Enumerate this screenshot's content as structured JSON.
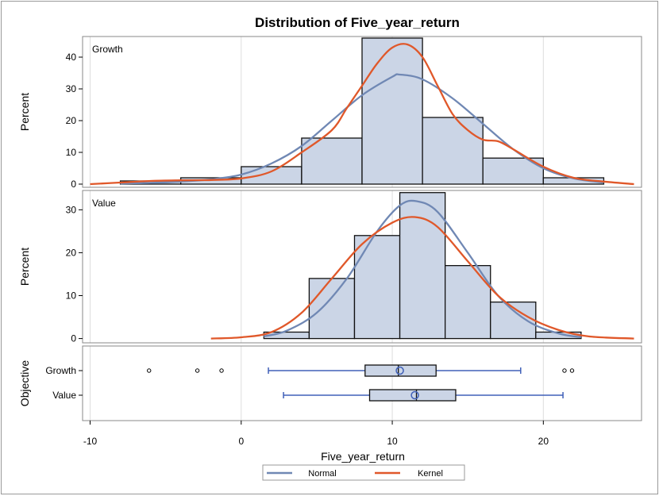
{
  "chart_data": {
    "type": "histogram-panel",
    "title": "Distribution of Five_year_return",
    "xlabel": "Five_year_return",
    "xlim": [
      -10.5,
      26.5
    ],
    "xticks": [
      -10,
      0,
      10,
      20
    ],
    "colors": {
      "bar_fill": "#cbd5e6",
      "bar_stroke": "#111111",
      "normal": "#7088b4",
      "kernel": "#e0582a",
      "box": "#4060b8",
      "grid": "#dddddd",
      "frame": "#888888"
    },
    "panels": [
      {
        "label": "Growth",
        "ylabel": "Percent",
        "ylim": [
          -1,
          46.5
        ],
        "yticks": [
          0,
          10,
          20,
          30,
          40
        ],
        "bins": [
          {
            "x0": -8,
            "x1": -4,
            "value": 1
          },
          {
            "x0": -4,
            "x1": 0,
            "value": 2
          },
          {
            "x0": 0,
            "x1": 4,
            "value": 5.5
          },
          {
            "x0": 4,
            "x1": 8,
            "value": 14.5
          },
          {
            "x0": 8,
            "x1": 12,
            "value": 46
          },
          {
            "x0": 12,
            "x1": 16,
            "value": 21
          },
          {
            "x0": 16,
            "x1": 20,
            "value": 8.2
          },
          {
            "x0": 20,
            "x1": 24,
            "value": 2
          }
        ],
        "normal": {
          "x": [
            -8,
            -6,
            -4,
            -2,
            0,
            2,
            4,
            6,
            8,
            10,
            10.5,
            12,
            14,
            16,
            18,
            20,
            22,
            24
          ],
          "y": [
            0.2,
            0.4,
            0.8,
            1.5,
            3,
            6.5,
            12,
            20,
            28,
            33.8,
            34.5,
            33,
            27,
            19,
            11,
            5,
            1.8,
            0.5
          ]
        },
        "kernel": {
          "x": [
            -10,
            -8,
            -6,
            -4,
            -2,
            0,
            2,
            4,
            6,
            7,
            8,
            9,
            10,
            11,
            12,
            13,
            14,
            15,
            16,
            17,
            18,
            20,
            22,
            24,
            26
          ],
          "y": [
            0,
            0.5,
            1,
            1.2,
            1.3,
            1.8,
            4,
            10,
            17,
            24,
            31,
            38,
            43,
            44,
            40,
            31,
            22,
            17,
            14,
            13.5,
            11,
            5.5,
            2,
            0.8,
            0
          ]
        }
      },
      {
        "label": "Value",
        "ylabel": "Percent",
        "ylim": [
          -1,
          34.5
        ],
        "yticks": [
          0,
          10,
          20,
          30
        ],
        "bins": [
          {
            "x0": 1.5,
            "x1": 4.5,
            "value": 1.5
          },
          {
            "x0": 4.5,
            "x1": 7.5,
            "value": 14
          },
          {
            "x0": 7.5,
            "x1": 10.5,
            "value": 24
          },
          {
            "x0": 10.5,
            "x1": 13.5,
            "value": 34
          },
          {
            "x0": 13.5,
            "x1": 16.5,
            "value": 17
          },
          {
            "x0": 16.5,
            "x1": 19.5,
            "value": 8.5
          },
          {
            "x0": 19.5,
            "x1": 22.5,
            "value": 1.5
          }
        ],
        "normal": {
          "x": [
            1.5,
            3,
            5,
            7,
            9,
            10.5,
            11.6,
            13,
            15,
            17,
            19,
            21,
            22.5
          ],
          "y": [
            0.5,
            1.8,
            6,
            14,
            25,
            31,
            32,
            29.5,
            20,
            10,
            4,
            1.2,
            0.3
          ]
        },
        "kernel": {
          "x": [
            -2,
            0,
            2,
            4,
            6,
            8,
            10,
            11.5,
            13,
            15,
            17,
            19,
            21,
            23,
            26
          ],
          "y": [
            0,
            0.3,
            1.5,
            6,
            14,
            22,
            27,
            28.3,
            26,
            18,
            10,
            5,
            2,
            0.5,
            0
          ]
        }
      }
    ],
    "boxplot": {
      "ylabel": "Objective",
      "groups": [
        {
          "name": "Growth",
          "whisker_low": 1.8,
          "q1": 8.2,
          "median": 10.4,
          "q3": 12.9,
          "whisker_high": 18.5,
          "mean": 10.5,
          "outliers": [
            -6.1,
            -2.9,
            -1.3,
            21.4,
            21.9
          ]
        },
        {
          "name": "Value",
          "whisker_low": 2.8,
          "q1": 8.5,
          "median": 11.6,
          "q3": 14.2,
          "whisker_high": 21.3,
          "mean": 11.5,
          "outliers": []
        }
      ]
    },
    "legend": {
      "position": "bottom",
      "entries": [
        {
          "name": "Normal",
          "key": "normal"
        },
        {
          "name": "Kernel",
          "key": "kernel"
        }
      ]
    }
  }
}
